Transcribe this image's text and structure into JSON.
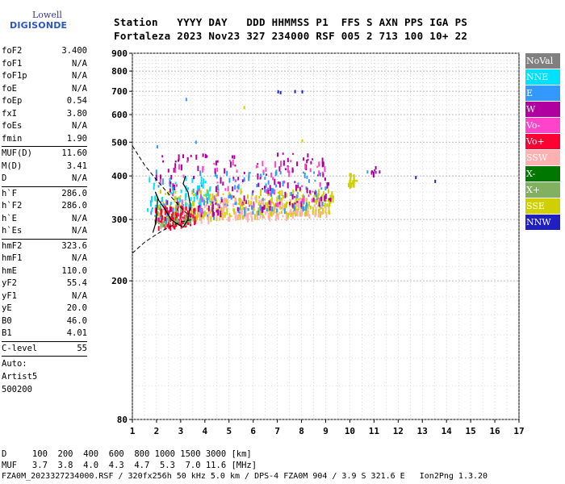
{
  "logo": {
    "line1": "Lowell",
    "line2": "DIGISONDE"
  },
  "header": {
    "line1": "Station   YYYY DAY   DDD HHMMSS P1  FFS S AXN PPS IGA PS",
    "line2": "Fortaleza 2023 Nov23 327 234000 RSF 005 2 713 100 10+ 22"
  },
  "params": {
    "group1": [
      {
        "label": "foF2",
        "value": "3.400"
      },
      {
        "label": "foF1",
        "value": "N/A"
      },
      {
        "label": "foF1p",
        "value": "N/A"
      },
      {
        "label": "foE",
        "value": "N/A"
      },
      {
        "label": "foEp",
        "value": "0.54"
      },
      {
        "label": "fxI",
        "value": "3.80"
      },
      {
        "label": "foEs",
        "value": "N/A"
      },
      {
        "label": "fmin",
        "value": "1.90"
      }
    ],
    "group2": [
      {
        "label": "MUF(D)",
        "value": "11.60"
      },
      {
        "label": "M(D)",
        "value": "3.41"
      },
      {
        "label": "D",
        "value": "N/A"
      }
    ],
    "group3": [
      {
        "label": "h`F",
        "value": "286.0"
      },
      {
        "label": "h`F2",
        "value": "286.0"
      },
      {
        "label": "h`E",
        "value": "N/A"
      },
      {
        "label": "h`Es",
        "value": "N/A"
      }
    ],
    "group4": [
      {
        "label": "hmF2",
        "value": "323.6"
      },
      {
        "label": "hmF1",
        "value": "N/A"
      },
      {
        "label": "hmE",
        "value": "110.0"
      },
      {
        "label": "yF2",
        "value": "55.4"
      },
      {
        "label": "yF1",
        "value": "N/A"
      },
      {
        "label": "yE",
        "value": "20.0"
      },
      {
        "label": "B0",
        "value": "46.0"
      },
      {
        "label": "B1",
        "value": "4.01"
      }
    ],
    "group5": [
      {
        "label": "C-level",
        "value": "55"
      }
    ],
    "auto": [
      "Auto:",
      "Artist5",
      "500200"
    ]
  },
  "legend": [
    {
      "label": "NoVal",
      "color": "#808080"
    },
    {
      "label": "NNE",
      "color": "#00e0ff"
    },
    {
      "label": "E",
      "color": "#3399ff"
    },
    {
      "label": "W",
      "color": "#b000a0"
    },
    {
      "label": "Vo-",
      "color": "#ff44cc"
    },
    {
      "label": "Vo+",
      "color": "#ff0033"
    },
    {
      "label": "SSW",
      "color": "#ffb0b0"
    },
    {
      "label": "X-",
      "color": "#007800"
    },
    {
      "label": "X+",
      "color": "#80b060"
    },
    {
      "label": "SSE",
      "color": "#d0d000"
    },
    {
      "label": "NNW",
      "color": "#2020c0"
    }
  ],
  "footer": {
    "line1": "D     100  200  400  600  800 1000 1500 3000 [km]",
    "line2": "MUF   3.7  3.8  4.0  4.3  4.7  5.3  7.0 11.6 [MHz]",
    "line3": "FZA0M_2023327234000.RSF / 320fx256h 50 kHz 5.0 km / DPS-4 FZA0M 904 / 3.9 S 321.6 E   Ion2Png 1.3.20"
  },
  "chart_data": {
    "type": "scatter",
    "xlim": [
      1,
      17
    ],
    "ylim": [
      80,
      900
    ],
    "y_scale": "log",
    "x_ticks": [
      1,
      2,
      3,
      4,
      5,
      6,
      7,
      8,
      9,
      10,
      11,
      12,
      13,
      14,
      15,
      16,
      17
    ],
    "y_ticks": [
      80,
      200,
      300,
      400,
      500,
      600,
      700,
      800,
      900
    ],
    "grid": true,
    "legend_position": "right",
    "clusters": [
      {
        "series": "SSE",
        "x": [
          1.9,
          9.3
        ],
        "y": [
          300,
          370
        ],
        "count": 360
      },
      {
        "series": "SSW",
        "x": [
          3.0,
          9.0
        ],
        "y": [
          300,
          350
        ],
        "count": 160
      },
      {
        "series": "E",
        "x": [
          1.6,
          9.0
        ],
        "y": [
          300,
          420
        ],
        "count": 130
      },
      {
        "series": "NNE",
        "x": [
          1.6,
          4.5
        ],
        "y": [
          320,
          400
        ],
        "count": 60
      },
      {
        "series": "W",
        "x": [
          1.9,
          9.2
        ],
        "y": [
          300,
          470
        ],
        "count": 140
      },
      {
        "series": "Vo-",
        "x": [
          1.9,
          9.0
        ],
        "y": [
          310,
          450
        ],
        "count": 70
      },
      {
        "series": "Vo+",
        "x": [
          1.9,
          3.6
        ],
        "y": [
          285,
          330
        ],
        "count": 90
      },
      {
        "series": "X+",
        "x": [
          2.0,
          3.5
        ],
        "y": [
          290,
          330
        ],
        "count": 30
      },
      {
        "series": "SSE",
        "x": [
          9.9,
          10.3
        ],
        "y": [
          380,
          410
        ],
        "count": 20
      },
      {
        "series": "W",
        "x": [
          10.8,
          11.2
        ],
        "y": [
          410,
          430
        ],
        "count": 6
      }
    ],
    "points": [
      {
        "series": "NNW",
        "x": 7.0,
        "y": 705
      },
      {
        "series": "NNW",
        "x": 7.1,
        "y": 701
      },
      {
        "series": "NNW",
        "x": 7.7,
        "y": 706
      },
      {
        "series": "NNW",
        "x": 8.0,
        "y": 705
      },
      {
        "series": "NNW",
        "x": 12.7,
        "y": 400
      },
      {
        "series": "NNW",
        "x": 13.5,
        "y": 390
      },
      {
        "series": "E",
        "x": 3.2,
        "y": 670
      },
      {
        "series": "E",
        "x": 2.0,
        "y": 490
      },
      {
        "series": "SSE",
        "x": 5.6,
        "y": 635
      },
      {
        "series": "E",
        "x": 3.6,
        "y": 505
      },
      {
        "series": "SSE",
        "x": 8.0,
        "y": 510
      },
      {
        "series": "W",
        "x": 11.2,
        "y": 415
      },
      {
        "series": "E",
        "x": 10.7,
        "y": 415
      }
    ],
    "profile_curve": [
      [
        1.85,
        275
      ],
      [
        1.95,
        290
      ],
      [
        2.0,
        310
      ],
      [
        2.05,
        345
      ],
      [
        1.95,
        360
      ],
      [
        2.1,
        340
      ],
      [
        2.3,
        325
      ],
      [
        2.6,
        300
      ],
      [
        2.9,
        290
      ],
      [
        3.1,
        285
      ],
      [
        3.3,
        300
      ],
      [
        3.4,
        330
      ],
      [
        3.3,
        360
      ],
      [
        3.1,
        380
      ],
      [
        3.2,
        400
      ]
    ],
    "dashed_lines": [
      [
        [
          1.0,
          488
        ],
        [
          1.5,
          430
        ],
        [
          2.0,
          390
        ],
        [
          2.5,
          355
        ],
        [
          3.0,
          325
        ],
        [
          3.4,
          305
        ]
      ],
      [
        [
          1.0,
          240
        ],
        [
          1.5,
          258
        ],
        [
          2.0,
          272
        ],
        [
          2.5,
          285
        ],
        [
          3.0,
          295
        ],
        [
          3.5,
          300
        ]
      ]
    ]
  }
}
